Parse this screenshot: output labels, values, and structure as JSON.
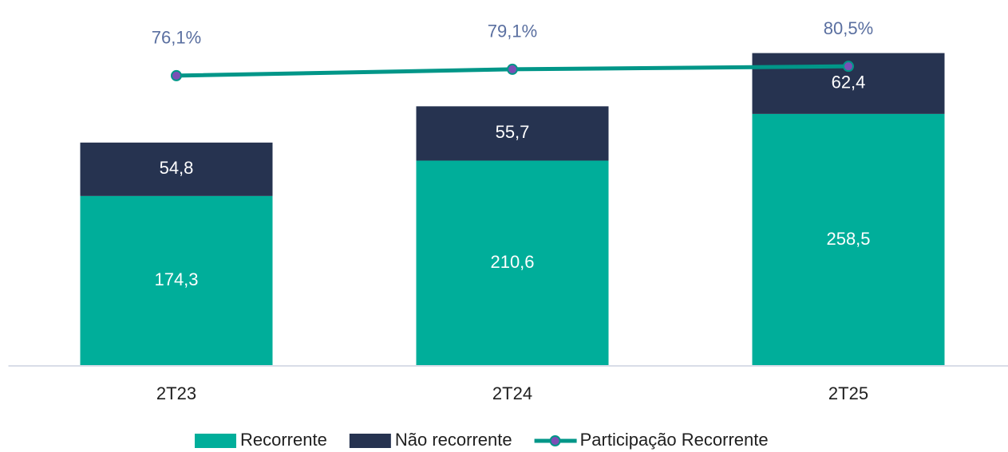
{
  "chart_data": {
    "type": "bar",
    "stacked": true,
    "categories": [
      "2T23",
      "2T24",
      "2T25"
    ],
    "ylim": [
      0,
      350
    ],
    "y2lim": [
      -60,
      100
    ],
    "series": [
      {
        "name": "Recorrente",
        "color": "#00ae9a",
        "values": [
          174.3,
          210.6,
          258.5
        ],
        "value_labels": [
          "174,3",
          "210,6",
          "258,5"
        ]
      },
      {
        "name": "Não recorrente",
        "color": "#263350",
        "values": [
          54.8,
          55.7,
          62.4
        ],
        "value_labels": [
          "54,8",
          "55,7",
          "62,4"
        ]
      },
      {
        "name": "Participação Recorrente",
        "type": "line",
        "axis": "y2",
        "color": "#009688",
        "marker_color": "#7b4fb5",
        "values": [
          76.1,
          79.1,
          80.5
        ],
        "value_labels": [
          "76,1%",
          "79,1%",
          "80,5%"
        ]
      }
    ]
  }
}
